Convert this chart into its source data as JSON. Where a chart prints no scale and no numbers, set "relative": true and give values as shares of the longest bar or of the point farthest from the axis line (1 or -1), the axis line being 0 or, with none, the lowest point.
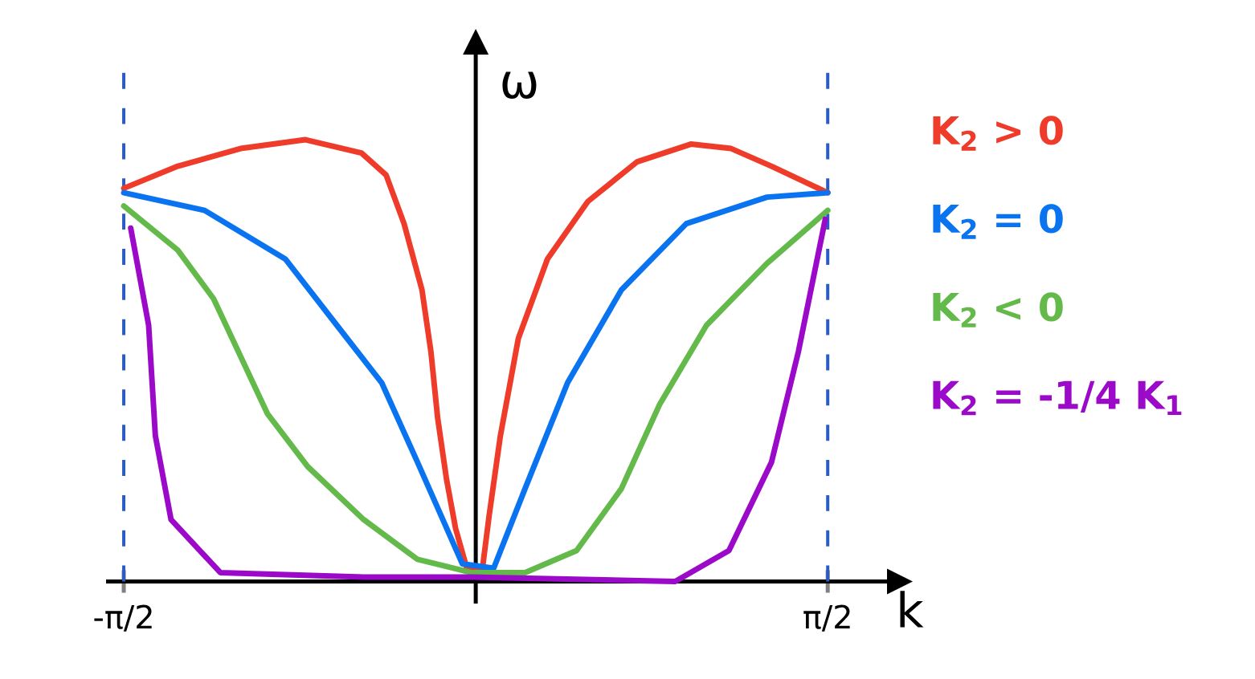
{
  "chart_data": {
    "type": "line",
    "relative": true,
    "xlabel": "k",
    "ylabel": "ω",
    "xlim": [
      -1.65,
      1.85
    ],
    "xticks": [
      {
        "value": -1.571,
        "label": "-π/2"
      },
      {
        "value": 1.571,
        "label": "π/2"
      }
    ],
    "legend": "right",
    "marker": "none",
    "line_style": "solid",
    "grid": false,
    "ref_lines": [
      {
        "axis": "x",
        "value": -1.571,
        "color": "#2a5cc4",
        "line_style": "dashed"
      },
      {
        "axis": "x",
        "value": 1.571,
        "color": "#2a5cc4",
        "line_style": "dashed"
      }
    ],
    "series": [
      {
        "name": "K$_{2}$ > 0",
        "color": "#ee3b2a",
        "x": [
          -1.571,
          -1.33,
          -1.05,
          -0.76,
          -0.51,
          -0.4,
          -0.32,
          -0.24,
          -0.2,
          -0.17,
          -0.13,
          -0.09,
          -0.04,
          0.03,
          0.06,
          0.11,
          0.19,
          0.32,
          0.5,
          0.72,
          0.96,
          1.14,
          1.32,
          1.571
        ],
        "values": [
          0.89,
          0.94,
          0.98,
          1.0,
          0.97,
          0.92,
          0.81,
          0.66,
          0.52,
          0.37,
          0.23,
          0.12,
          0.03,
          0.03,
          0.15,
          0.33,
          0.55,
          0.73,
          0.86,
          0.95,
          0.99,
          0.98,
          0.94,
          0.88
        ]
      },
      {
        "name": "K$_{2}$ = 0",
        "color": "#0a74f0",
        "x": [
          -1.571,
          -1.21,
          -0.85,
          -0.62,
          -0.42,
          -0.26,
          -0.06,
          0.08,
          0.22,
          0.41,
          0.65,
          0.94,
          1.3,
          1.571
        ],
        "values": [
          0.88,
          0.84,
          0.73,
          0.58,
          0.45,
          0.27,
          0.04,
          0.03,
          0.21,
          0.45,
          0.66,
          0.81,
          0.87,
          0.88
        ]
      },
      {
        "name": "K$_{2}$ < 0",
        "color": "#63b94a",
        "x": [
          -1.571,
          -1.33,
          -1.17,
          -0.93,
          -0.75,
          -0.5,
          -0.26,
          -0.02,
          0.22,
          0.45,
          0.65,
          0.82,
          1.03,
          1.3,
          1.571
        ],
        "values": [
          0.85,
          0.75,
          0.64,
          0.38,
          0.26,
          0.14,
          0.05,
          0.02,
          0.02,
          0.07,
          0.21,
          0.4,
          0.58,
          0.72,
          0.84
        ]
      },
      {
        "name": "K$_{2}$ = -1/4 K$_{1}$",
        "color": "#9b0ac8",
        "x": [
          -1.54,
          -1.46,
          -1.43,
          -1.36,
          -1.14,
          -0.5,
          -0.02,
          0.89,
          1.13,
          1.32,
          1.44,
          1.56
        ],
        "values": [
          0.8,
          0.58,
          0.33,
          0.14,
          0.02,
          0.01,
          0.01,
          0.0,
          0.07,
          0.27,
          0.52,
          0.82
        ]
      }
    ]
  }
}
